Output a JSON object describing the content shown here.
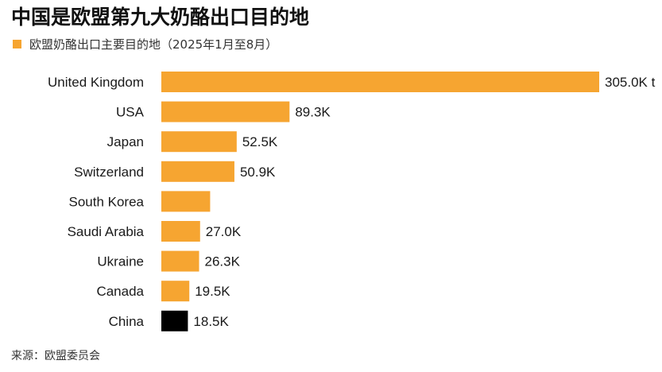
{
  "title": "中国是欧盟第九大奶酪出口目的地",
  "legend_label": "欧盟奶酪出口主要目的地（2025年1月至8月）",
  "source": "来源：欧盟委员会",
  "colors": {
    "bar": "#f6a531",
    "highlight": "#000000"
  },
  "chart_data": {
    "type": "bar",
    "orientation": "horizontal",
    "categories": [
      "United Kingdom",
      "USA",
      "Japan",
      "Switzerland",
      "South Korea",
      "Saudi Arabia",
      "Ukraine",
      "Canada",
      "China"
    ],
    "values": [
      305.0,
      89.3,
      52.5,
      50.9,
      34.0,
      27.0,
      26.3,
      19.5,
      18.5
    ],
    "labels": [
      "305.0K t",
      "89.3K",
      "52.5K",
      "50.9K",
      "",
      "27.0K",
      "26.3K",
      "19.5K",
      "18.5K"
    ],
    "highlight": "China",
    "series": [
      {
        "name": "欧盟奶酪出口主要目的地（2025年1月至8月）"
      }
    ]
  }
}
